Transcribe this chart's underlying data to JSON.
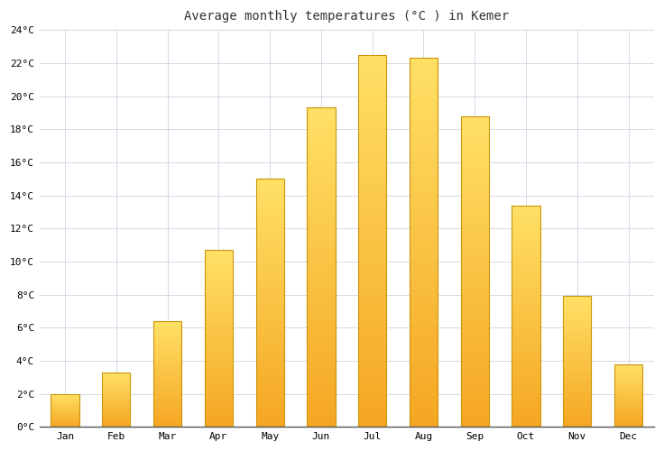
{
  "title": "Average monthly temperatures (°C ) in Kemer",
  "months": [
    "Jan",
    "Feb",
    "Mar",
    "Apr",
    "May",
    "Jun",
    "Jul",
    "Aug",
    "Sep",
    "Oct",
    "Nov",
    "Dec"
  ],
  "values": [
    2.0,
    3.3,
    6.4,
    10.7,
    15.0,
    19.3,
    22.5,
    22.3,
    18.8,
    13.4,
    7.9,
    3.8
  ],
  "bar_color_bottom": "#F5A623",
  "bar_color_top": "#FFE066",
  "bar_edge_color": "#C8960A",
  "ylim": [
    0,
    24
  ],
  "yticks": [
    0,
    2,
    4,
    6,
    8,
    10,
    12,
    14,
    16,
    18,
    20,
    22,
    24
  ],
  "ytick_labels": [
    "0°C",
    "2°C",
    "4°C",
    "6°C",
    "8°C",
    "10°C",
    "12°C",
    "14°C",
    "16°C",
    "18°C",
    "20°C",
    "22°C",
    "24°C"
  ],
  "grid_color": "#D8D8E8",
  "background_color": "#FFFFFF",
  "title_fontsize": 10,
  "tick_fontsize": 8,
  "font_family": "monospace",
  "bar_width": 0.55,
  "fig_width": 7.36,
  "fig_height": 5.0,
  "dpi": 100
}
